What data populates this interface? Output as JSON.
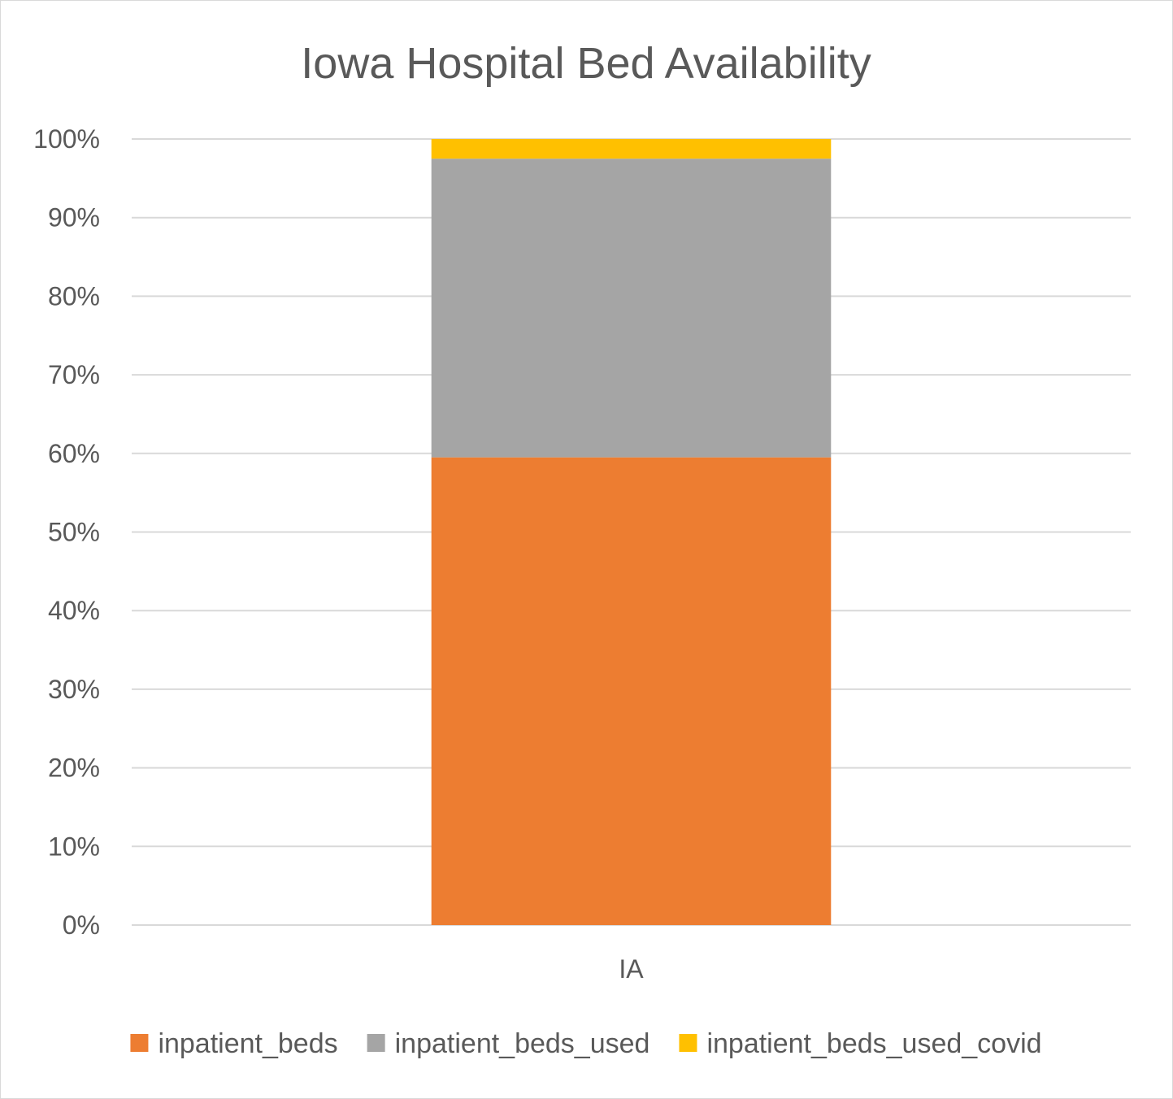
{
  "chart_data": {
    "type": "bar",
    "stacked": true,
    "normalized": true,
    "title": "Iowa Hospital Bed Availability",
    "categories": [
      "IA"
    ],
    "series": [
      {
        "name": "inpatient_beds",
        "values": [
          59.5
        ],
        "color": "#ED7D31"
      },
      {
        "name": "inpatient_beds_used",
        "values": [
          38
        ],
        "color": "#A5A5A5"
      },
      {
        "name": "inpatient_beds_used_covid",
        "values": [
          2.5
        ],
        "color": "#FFC000"
      }
    ],
    "ylim": [
      0,
      100
    ],
    "yticks": [
      "0%",
      "10%",
      "20%",
      "30%",
      "40%",
      "50%",
      "60%",
      "70%",
      "80%",
      "90%",
      "100%"
    ],
    "grid": true,
    "legend_position": "bottom"
  }
}
